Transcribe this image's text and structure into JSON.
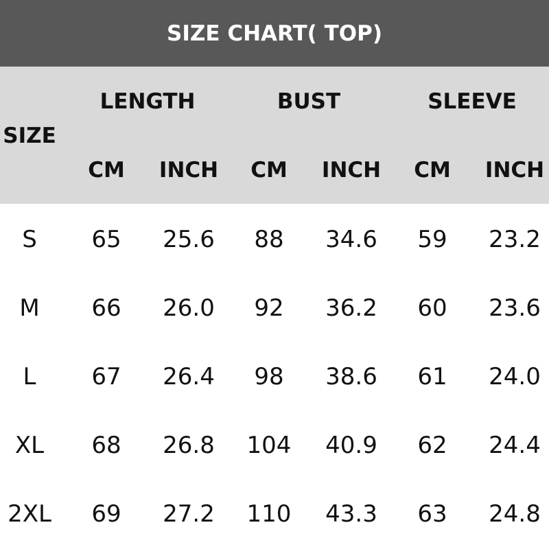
{
  "title": "SIZE CHART( TOP)",
  "header": {
    "size_label": "SIZE",
    "groups": [
      "LENGTH",
      "BUST",
      "SLEEVE"
    ],
    "units": [
      "CM",
      "INCH",
      "CM",
      "INCH",
      "CM",
      "INCH"
    ]
  },
  "rows": [
    [
      "S",
      "65",
      "25.6",
      "88",
      "34.6",
      "59",
      "23.2"
    ],
    [
      "M",
      "66",
      "26.0",
      "92",
      "36.2",
      "60",
      "23.6"
    ],
    [
      "L",
      "67",
      "26.4",
      "98",
      "38.6",
      "61",
      "24.0"
    ],
    [
      "XL",
      "68",
      "26.8",
      "104",
      "40.9",
      "62",
      "24.4"
    ],
    [
      "2XL",
      "69",
      "27.2",
      "110",
      "43.3",
      "63",
      "24.8"
    ]
  ],
  "colors": {
    "title_bg": "#585858",
    "header_bg": "#d9d9d9",
    "title_text": "#ffffff"
  }
}
